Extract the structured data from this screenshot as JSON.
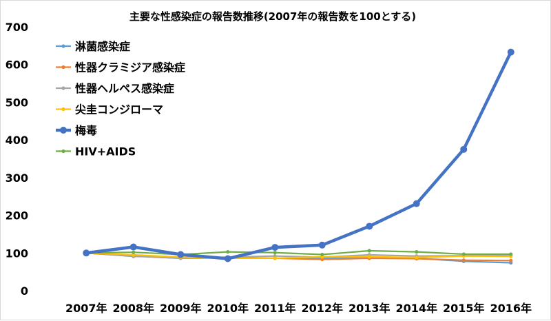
{
  "chart_data": {
    "type": "line",
    "title": "主要な性感染症の報告数推移(2007年の報告数を100とする)",
    "xlabel": "",
    "ylabel": "",
    "ylim": [
      0,
      700
    ],
    "yticks": [
      0,
      100,
      200,
      300,
      400,
      500,
      600,
      700
    ],
    "categories": [
      "2007年",
      "2008年",
      "2009年",
      "2010年",
      "2011年",
      "2012年",
      "2013年",
      "2014年",
      "2015年",
      "2016年"
    ],
    "legend_position": "top-left",
    "grid": false,
    "series": [
      {
        "name": "淋菌感染症",
        "color": "#5b9bd5",
        "values": [
          100,
          91,
          88,
          87,
          86,
          86,
          88,
          86,
          78,
          74
        ]
      },
      {
        "name": "性器クラミジア感染症",
        "color": "#ed7d31",
        "values": [
          100,
          92,
          86,
          87,
          86,
          83,
          86,
          85,
          81,
          80
        ]
      },
      {
        "name": "性器ヘルペス感染症",
        "color": "#a5a5a5",
        "values": [
          100,
          92,
          86,
          89,
          92,
          89,
          95,
          92,
          93,
          94
        ]
      },
      {
        "name": "尖圭コンジローマ",
        "color": "#ffc000",
        "values": [
          100,
          95,
          89,
          86,
          86,
          90,
          90,
          88,
          92,
          91
        ]
      },
      {
        "name": "梅毒",
        "color": "#4472c4",
        "emphasis": true,
        "values": [
          100,
          116,
          96,
          85,
          115,
          121,
          171,
          231,
          375,
          633
        ]
      },
      {
        "name": "HIV+AIDS",
        "color": "#70ad47",
        "values": [
          100,
          102,
          96,
          103,
          101,
          96,
          106,
          103,
          97,
          97
        ]
      }
    ]
  }
}
